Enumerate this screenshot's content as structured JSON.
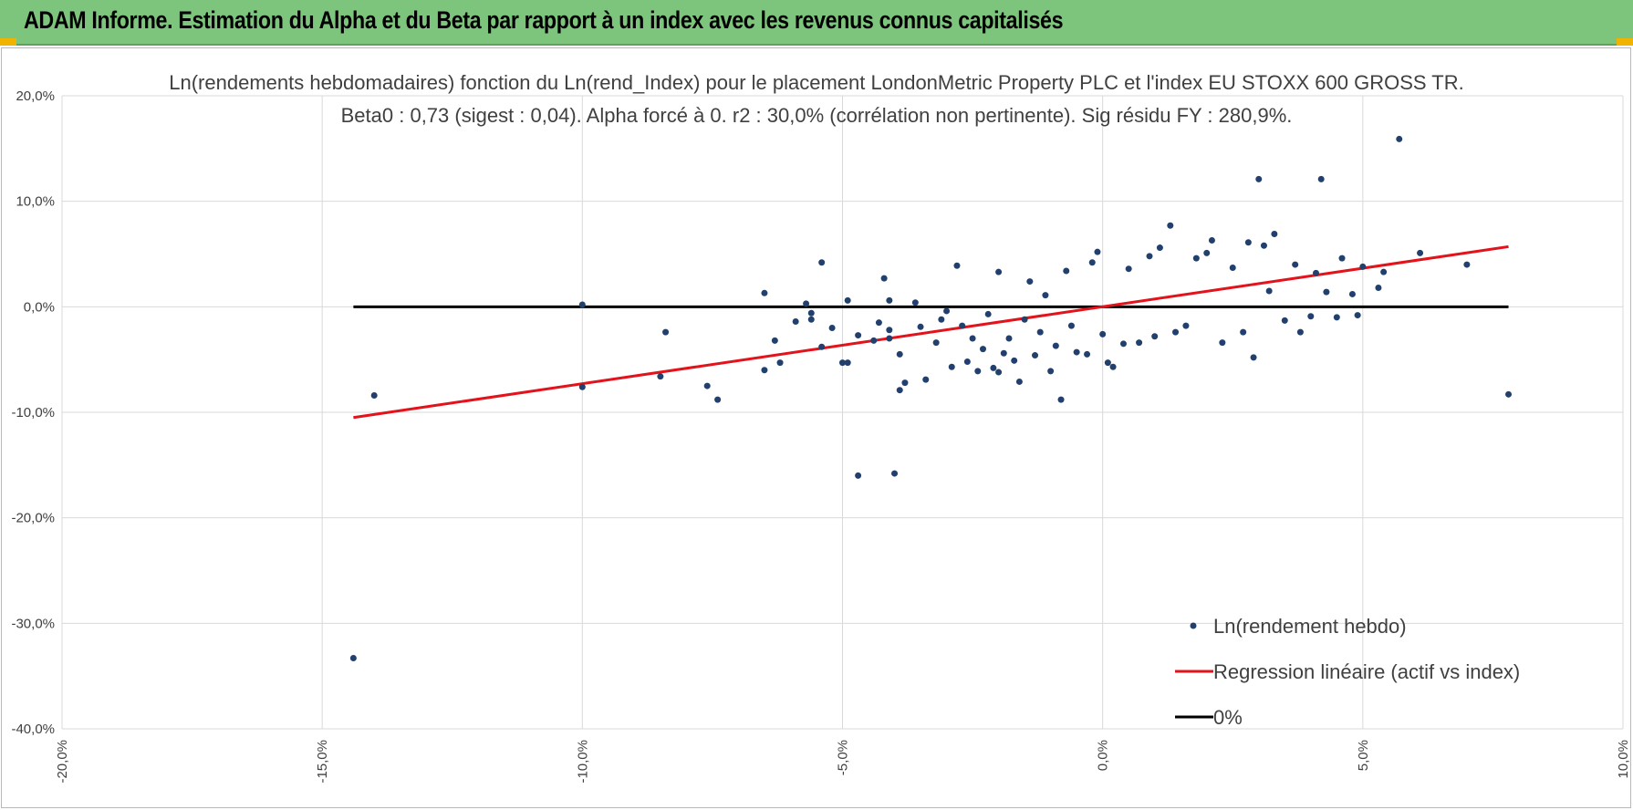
{
  "banner": {
    "title": "ADAM Informe. Estimation du Alpha et du Beta par rapport à un index avec les revenus connus capitalisés"
  },
  "colors": {
    "banner": "#7dc57d",
    "points": "#22406e",
    "regression": "#e3121b",
    "zero_line": "#000000",
    "accent_corners": "#f0b400"
  },
  "chart_data": {
    "type": "scatter",
    "title": "Ln(rendements hebdomadaires) fonction du Ln(rend_Index) pour le placement LondonMetric Property PLC et l'index EU STOXX 600 GROSS TR.",
    "subtitle": "Beta0 : 0,73 (sigest : 0,04).  Alpha forcé à 0. r2 : 30,0% (corrélation non pertinente). Sig résidu FY : 280,9%.",
    "xlabel": "",
    "ylabel": "",
    "xlim": [
      -20,
      10
    ],
    "ylim": [
      -40,
      20
    ],
    "x_ticks": [
      -20,
      -15,
      -10,
      -5,
      0,
      5,
      10
    ],
    "x_tick_labels": [
      "-20,0%",
      "-15,0%",
      "-10,0%",
      "-5,0%",
      "0,0%",
      "5,0%",
      "10,0%"
    ],
    "y_ticks": [
      20,
      10,
      0,
      -10,
      -20,
      -30,
      -40
    ],
    "y_tick_labels": [
      "20,0%",
      "10,0%",
      "0,0%",
      "-10,0%",
      "-20,0%",
      "-30,0%",
      "-40,0%"
    ],
    "grid": true,
    "legend_position": "bottom-right",
    "series": [
      {
        "name": "Ln(rendement hebdo)",
        "kind": "scatter",
        "points": [
          [
            -14.4,
            -33.3
          ],
          [
            -14,
            -8.4
          ],
          [
            -10,
            0.2
          ],
          [
            -10,
            -7.6
          ],
          [
            -8.4,
            -2.4
          ],
          [
            -8.5,
            -6.6
          ],
          [
            -7.6,
            -7.5
          ],
          [
            -7.4,
            -8.8
          ],
          [
            -6.5,
            1.3
          ],
          [
            -6.3,
            -3.2
          ],
          [
            -6.2,
            -5.3
          ],
          [
            -6.5,
            -6
          ],
          [
            -5.9,
            -1.4
          ],
          [
            -5.7,
            0.3
          ],
          [
            -5.6,
            -0.6
          ],
          [
            -5.6,
            -1.2
          ],
          [
            -5.4,
            4.2
          ],
          [
            -5.4,
            -3.8
          ],
          [
            -5.2,
            -2
          ],
          [
            -5,
            -5.3
          ],
          [
            -4.9,
            0.6
          ],
          [
            -4.9,
            -5.3
          ],
          [
            -4.7,
            -2.7
          ],
          [
            -4.7,
            -16
          ],
          [
            -4.4,
            -3.2
          ],
          [
            -4.3,
            -1.5
          ],
          [
            -4.2,
            2.7
          ],
          [
            -4.1,
            0.6
          ],
          [
            -4.1,
            -2.2
          ],
          [
            -4.1,
            -3
          ],
          [
            -4.0,
            -15.8
          ],
          [
            -3.9,
            -4.5
          ],
          [
            -3.9,
            -7.9
          ],
          [
            -3.8,
            -7.2
          ],
          [
            -3.6,
            0.4
          ],
          [
            -3.5,
            -1.9
          ],
          [
            -3.4,
            -6.9
          ],
          [
            -3.2,
            -3.4
          ],
          [
            -3.1,
            -1.2
          ],
          [
            -3,
            -0.4
          ],
          [
            -2.9,
            -5.7
          ],
          [
            -2.8,
            3.9
          ],
          [
            -2.7,
            -1.8
          ],
          [
            -2.6,
            -5.2
          ],
          [
            -2.5,
            -3
          ],
          [
            -2.4,
            -6.1
          ],
          [
            -2.3,
            -4
          ],
          [
            -2.2,
            -0.7
          ],
          [
            -2.1,
            -5.8
          ],
          [
            -2,
            -6.2
          ],
          [
            -2,
            3.3
          ],
          [
            -1.9,
            -4.4
          ],
          [
            -1.8,
            -3
          ],
          [
            -1.7,
            -5.1
          ],
          [
            -1.6,
            -7.1
          ],
          [
            -1.5,
            -1.2
          ],
          [
            -1.4,
            2.4
          ],
          [
            -1.3,
            -4.6
          ],
          [
            -1.2,
            -2.4
          ],
          [
            -1.1,
            1.1
          ],
          [
            -1.0,
            -6.1
          ],
          [
            -0.9,
            -3.7
          ],
          [
            -0.8,
            -8.8
          ],
          [
            -0.7,
            3.4
          ],
          [
            -0.6,
            -1.8
          ],
          [
            -0.5,
            -4.3
          ],
          [
            -0.3,
            -4.5
          ],
          [
            -0.2,
            4.2
          ],
          [
            -0.1,
            5.2
          ],
          [
            0,
            -2.6
          ],
          [
            0.1,
            -5.3
          ],
          [
            0.2,
            -5.7
          ],
          [
            0.4,
            -3.5
          ],
          [
            0.5,
            3.6
          ],
          [
            0.7,
            -3.4
          ],
          [
            0.9,
            4.8
          ],
          [
            1.0,
            -2.8
          ],
          [
            1.1,
            5.6
          ],
          [
            1.3,
            7.7
          ],
          [
            1.4,
            -2.4
          ],
          [
            1.6,
            -1.8
          ],
          [
            1.8,
            4.6
          ],
          [
            2.0,
            5.1
          ],
          [
            2.1,
            6.3
          ],
          [
            2.3,
            -3.4
          ],
          [
            2.5,
            3.7
          ],
          [
            2.7,
            -2.4
          ],
          [
            2.8,
            6.1
          ],
          [
            2.9,
            -4.8
          ],
          [
            3.0,
            12.1
          ],
          [
            3.1,
            5.8
          ],
          [
            3.2,
            1.5
          ],
          [
            3.3,
            6.9
          ],
          [
            3.5,
            -1.3
          ],
          [
            3.7,
            4.0
          ],
          [
            3.8,
            -2.4
          ],
          [
            4.0,
            -0.9
          ],
          [
            4.1,
            3.2
          ],
          [
            4.2,
            12.1
          ],
          [
            4.3,
            1.4
          ],
          [
            4.5,
            -1
          ],
          [
            4.6,
            4.6
          ],
          [
            4.8,
            1.2
          ],
          [
            4.9,
            -0.8
          ],
          [
            5.0,
            3.8
          ],
          [
            5.3,
            1.8
          ],
          [
            5.4,
            3.3
          ],
          [
            5.7,
            15.9
          ],
          [
            6.1,
            5.1
          ],
          [
            7.0,
            4.0
          ],
          [
            7.8,
            -8.3
          ]
        ]
      },
      {
        "name": "Regression linéaire (actif vs index)",
        "kind": "line",
        "points": [
          [
            -14.4,
            -10.5
          ],
          [
            7.8,
            5.7
          ]
        ]
      },
      {
        "name": "0%",
        "kind": "line",
        "points": [
          [
            -14.4,
            0
          ],
          [
            7.8,
            0
          ]
        ]
      }
    ]
  }
}
